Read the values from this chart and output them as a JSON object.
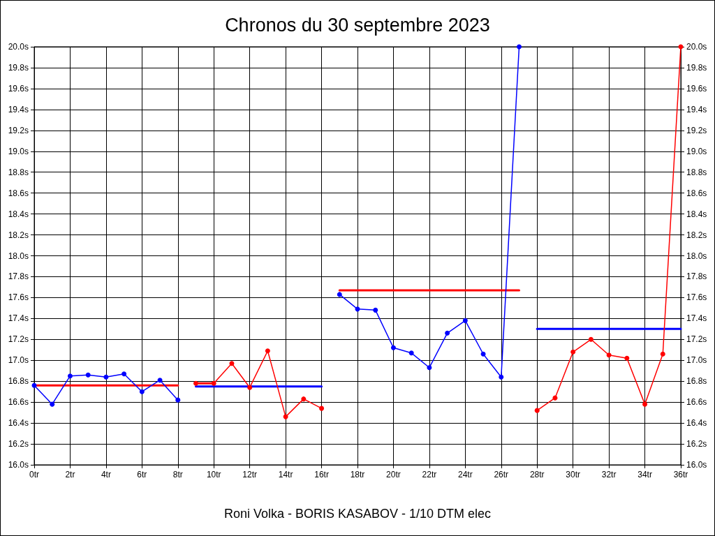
{
  "chart_data": {
    "type": "line",
    "title": "Chronos du 30 septembre 2023",
    "annotations": [
      "Roni Volka - BORIS KASABOV - 1/10 DTM elec"
    ],
    "marker": "circle",
    "line_style": "solid",
    "grid": true,
    "xlim": [
      0,
      36
    ],
    "xticks": [
      {
        "value": 0,
        "label": "0tr"
      },
      {
        "value": 2,
        "label": "2tr"
      },
      {
        "value": 4,
        "label": "4tr"
      },
      {
        "value": 6,
        "label": "6tr"
      },
      {
        "value": 8,
        "label": "8tr"
      },
      {
        "value": 10,
        "label": "10tr"
      },
      {
        "value": 12,
        "label": "12tr"
      },
      {
        "value": 14,
        "label": "14tr"
      },
      {
        "value": 16,
        "label": "16tr"
      },
      {
        "value": 18,
        "label": "18tr"
      },
      {
        "value": 20,
        "label": "20tr"
      },
      {
        "value": 22,
        "label": "22tr"
      },
      {
        "value": 24,
        "label": "24tr"
      },
      {
        "value": 26,
        "label": "26tr"
      },
      {
        "value": 28,
        "label": "28tr"
      },
      {
        "value": 30,
        "label": "30tr"
      },
      {
        "value": 32,
        "label": "32tr"
      },
      {
        "value": 34,
        "label": "34tr"
      },
      {
        "value": 36,
        "label": "36tr"
      }
    ],
    "ylim": [
      16.0,
      20.0
    ],
    "yticks": [
      {
        "value": 16.0,
        "label": "16.0s"
      },
      {
        "value": 16.2,
        "label": "16.2s"
      },
      {
        "value": 16.4,
        "label": "16.4s"
      },
      {
        "value": 16.6,
        "label": "16.6s"
      },
      {
        "value": 16.8,
        "label": "16.8s"
      },
      {
        "value": 17.0,
        "label": "17.0s"
      },
      {
        "value": 17.2,
        "label": "17.2s"
      },
      {
        "value": 17.4,
        "label": "17.4s"
      },
      {
        "value": 17.6,
        "label": "17.6s"
      },
      {
        "value": 17.8,
        "label": "17.8s"
      },
      {
        "value": 18.0,
        "label": "18.0s"
      },
      {
        "value": 18.2,
        "label": "18.2s"
      },
      {
        "value": 18.4,
        "label": "18.4s"
      },
      {
        "value": 18.6,
        "label": "18.6s"
      },
      {
        "value": 18.8,
        "label": "18.8s"
      },
      {
        "value": 19.0,
        "label": "19.0s"
      },
      {
        "value": 19.2,
        "label": "19.2s"
      },
      {
        "value": 19.4,
        "label": "19.4s"
      },
      {
        "value": 19.6,
        "label": "19.6s"
      },
      {
        "value": 19.8,
        "label": "19.8s"
      },
      {
        "value": 20.0,
        "label": "20.0s"
      }
    ],
    "y2lim": [
      16.0,
      20.0
    ],
    "y2ticks": [
      {
        "value": 16.0,
        "label": "16.0s"
      },
      {
        "value": 16.2,
        "label": "16.2s"
      },
      {
        "value": 16.4,
        "label": "16.4s"
      },
      {
        "value": 16.6,
        "label": "16.6s"
      },
      {
        "value": 16.8,
        "label": "16.8s"
      },
      {
        "value": 17.0,
        "label": "17.0s"
      },
      {
        "value": 17.2,
        "label": "17.2s"
      },
      {
        "value": 17.4,
        "label": "17.4s"
      },
      {
        "value": 17.6,
        "label": "17.6s"
      },
      {
        "value": 17.8,
        "label": "17.8s"
      },
      {
        "value": 18.0,
        "label": "18.0s"
      },
      {
        "value": 18.2,
        "label": "18.2s"
      },
      {
        "value": 18.4,
        "label": "18.4s"
      },
      {
        "value": 18.6,
        "label": "18.6s"
      },
      {
        "value": 18.8,
        "label": "18.8s"
      },
      {
        "value": 19.0,
        "label": "19.0s"
      },
      {
        "value": 19.2,
        "label": "19.2s"
      },
      {
        "value": 19.4,
        "label": "19.4s"
      },
      {
        "value": 19.6,
        "label": "19.6s"
      },
      {
        "value": 19.8,
        "label": "19.8s"
      },
      {
        "value": 20.0,
        "label": "20.0s"
      }
    ],
    "series": [
      {
        "color": "#0000ff",
        "x": [
          0,
          1,
          2,
          3,
          4,
          5,
          6,
          7,
          8
        ],
        "values": [
          16.76,
          16.58,
          16.85,
          16.86,
          16.84,
          16.87,
          16.7,
          16.81,
          16.62
        ]
      },
      {
        "color": "#ff0000",
        "x": [
          9,
          10,
          11,
          12,
          13,
          14,
          15,
          16
        ],
        "values": [
          16.78,
          16.78,
          16.97,
          16.74,
          17.09,
          16.46,
          16.63,
          16.54
        ]
      },
      {
        "color": "#0000ff",
        "x": [
          17,
          18,
          19,
          20,
          21,
          22,
          23,
          24,
          25,
          26,
          27
        ],
        "values": [
          17.63,
          17.49,
          17.48,
          17.12,
          17.07,
          16.93,
          17.26,
          17.38,
          17.06,
          16.84,
          20.0
        ]
      },
      {
        "color": "#ff0000",
        "x": [
          28,
          29,
          30,
          31,
          32,
          33,
          34,
          35,
          36
        ],
        "values": [
          16.52,
          16.64,
          17.08,
          17.2,
          17.05,
          17.02,
          16.58,
          17.06,
          20.0
        ]
      },
      {
        "color": "#ff0000",
        "marker": "none",
        "x": [
          0,
          8
        ],
        "values": [
          16.76,
          16.76
        ]
      },
      {
        "color": "#ff0000",
        "marker": "none",
        "x": [
          9,
          10
        ],
        "values": [
          16.78,
          16.78
        ]
      },
      {
        "color": "#0000ff",
        "marker": "none",
        "x": [
          9,
          16
        ],
        "values": [
          16.75,
          16.75
        ]
      },
      {
        "color": "#ff0000",
        "marker": "none",
        "x": [
          17,
          27
        ],
        "values": [
          17.67,
          17.67
        ]
      },
      {
        "color": "#0000ff",
        "marker": "none",
        "x": [
          28,
          36
        ],
        "values": [
          17.3,
          17.3
        ]
      }
    ]
  }
}
